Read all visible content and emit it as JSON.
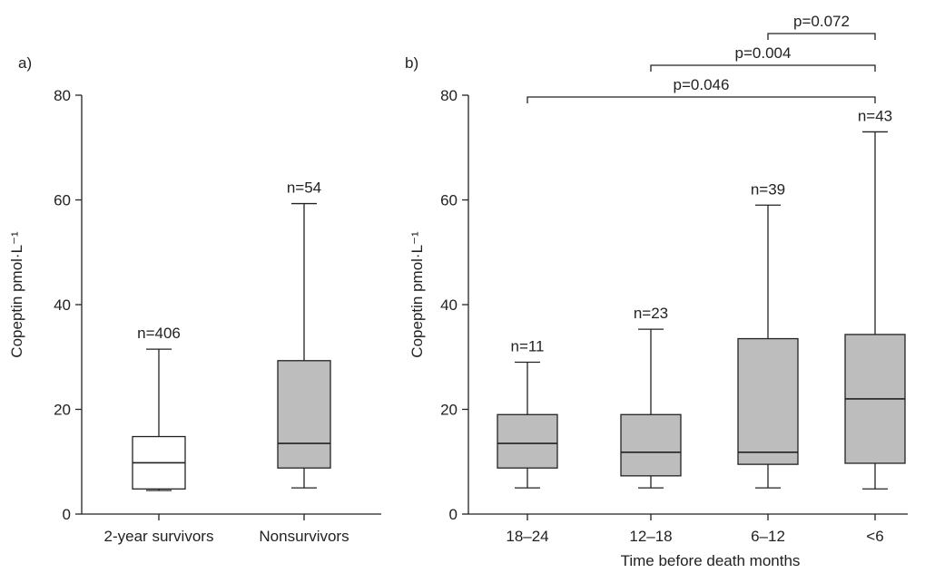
{
  "colors": {
    "box_white": "#ffffff",
    "box_grey": "#bdbdbd",
    "ink": "#222222"
  },
  "chart_data": [
    {
      "type": "boxplot",
      "panel_label": "a)",
      "ylabel": "Copeptin pmol·L⁻¹",
      "xlabel": "",
      "ylim": [
        0,
        80
      ],
      "yticks": [
        0,
        20,
        40,
        60,
        80
      ],
      "categories": [
        "2-year survivors",
        "Nonsurvivors"
      ],
      "n_labels": [
        "n=406",
        "n=54"
      ],
      "fills": [
        "white",
        "grey"
      ],
      "boxes": [
        {
          "whisker_low": 4.5,
          "q1": 4.8,
          "median": 9.8,
          "q3": 14.8,
          "whisker_high": 31.5
        },
        {
          "whisker_low": 5.0,
          "q1": 8.8,
          "median": 13.5,
          "q3": 29.3,
          "whisker_high": 59.3
        }
      ],
      "comparisons": []
    },
    {
      "type": "boxplot",
      "panel_label": "b)",
      "ylabel": "Copeptin pmol·L⁻¹",
      "xlabel": "Time before death months",
      "ylim": [
        0,
        80
      ],
      "yticks": [
        0,
        20,
        40,
        60,
        80
      ],
      "categories": [
        "18–24",
        "12–18",
        "6–12",
        "<6"
      ],
      "n_labels": [
        "n=11",
        "n=23",
        "n=39",
        "n=43"
      ],
      "fills": [
        "grey",
        "grey",
        "grey",
        "grey"
      ],
      "boxes": [
        {
          "whisker_low": 5.0,
          "q1": 8.8,
          "median": 13.5,
          "q3": 19.0,
          "whisker_high": 29.0
        },
        {
          "whisker_low": 5.0,
          "q1": 7.3,
          "median": 11.8,
          "q3": 19.0,
          "whisker_high": 35.3
        },
        {
          "whisker_low": 5.0,
          "q1": 9.5,
          "median": 11.8,
          "q3": 33.5,
          "whisker_high": 59.0
        },
        {
          "whisker_low": 4.8,
          "q1": 9.7,
          "median": 22.0,
          "q3": 34.3,
          "whisker_high": 73.0
        }
      ],
      "comparisons": [
        {
          "from": 2,
          "to": 3,
          "label": "p=0.072"
        },
        {
          "from": 1,
          "to": 3,
          "label": "p=0.004"
        },
        {
          "from": 0,
          "to": 3,
          "label": "p=0.046"
        }
      ]
    }
  ]
}
